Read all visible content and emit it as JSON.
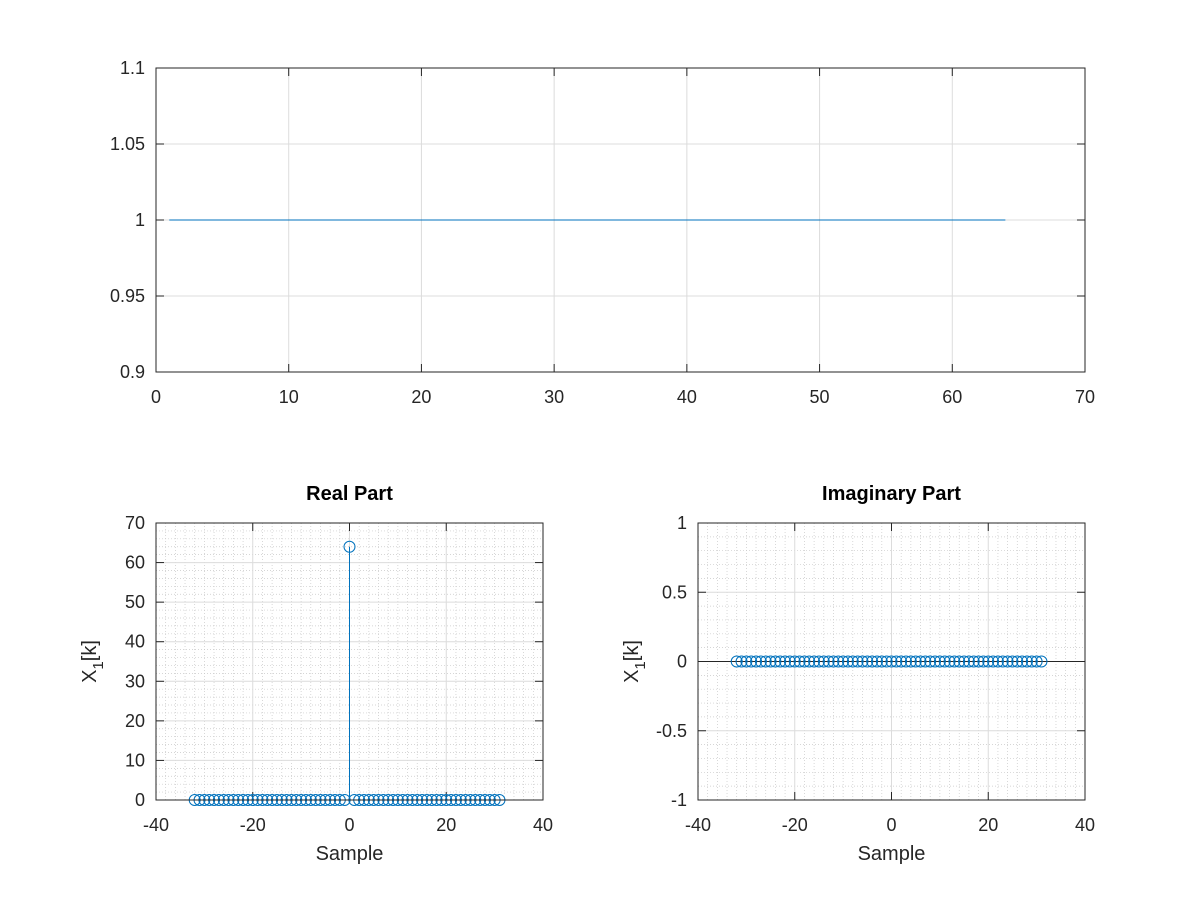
{
  "chart_data": [
    {
      "type": "line",
      "title": "",
      "xlabel": "",
      "ylabel": "",
      "xlim": [
        0,
        70
      ],
      "ylim": [
        0.9,
        1.1
      ],
      "xticks": [
        0,
        10,
        20,
        30,
        40,
        50,
        60,
        70
      ],
      "yticks": [
        0.9,
        0.95,
        1,
        1.05,
        1.1
      ],
      "xtick_labels": [
        "0",
        "10",
        "20",
        "30",
        "40",
        "50",
        "60",
        "70"
      ],
      "ytick_labels": [
        "0.9",
        "0.95",
        "1",
        "1.05",
        "1.1"
      ],
      "grid": true,
      "minor_grid": false,
      "series": [
        {
          "x_start": 1,
          "x_end": 64,
          "value": 1,
          "color": "#0072bd"
        }
      ]
    },
    {
      "type": "stem",
      "title": "Real Part",
      "xlabel": "Sample",
      "ylabel": "X",
      "ylabel_sub": "1",
      "ylabel_suffix": "[k]",
      "xlim": [
        -40,
        40
      ],
      "ylim": [
        0,
        70
      ],
      "xticks": [
        -40,
        -20,
        0,
        20,
        40
      ],
      "yticks": [
        0,
        10,
        20,
        30,
        40,
        50,
        60,
        70
      ],
      "xtick_labels": [
        "-40",
        "-20",
        "0",
        "20",
        "40"
      ],
      "ytick_labels": [
        "0",
        "10",
        "20",
        "30",
        "40",
        "50",
        "60",
        "70"
      ],
      "grid": true,
      "minor_grid": true,
      "series": [
        {
          "x_start": -32,
          "x_end": 31,
          "default_value": 0,
          "nonzero": [
            [
              0,
              64
            ]
          ],
          "color": "#0072bd"
        }
      ]
    },
    {
      "type": "stem",
      "title": "Imaginary Part",
      "xlabel": "Sample",
      "ylabel": "X",
      "ylabel_sub": "1",
      "ylabel_suffix": "[k]",
      "xlim": [
        -40,
        40
      ],
      "ylim": [
        -1,
        1
      ],
      "xticks": [
        -40,
        -20,
        0,
        20,
        40
      ],
      "yticks": [
        -1,
        -0.5,
        0,
        0.5,
        1
      ],
      "xtick_labels": [
        "-40",
        "-20",
        "0",
        "20",
        "40"
      ],
      "ytick_labels": [
        "-1",
        "-0.5",
        "0",
        "0.5",
        "1"
      ],
      "grid": true,
      "minor_grid": true,
      "series": [
        {
          "x_start": -32,
          "x_end": 31,
          "default_value": 0,
          "nonzero": [],
          "color": "#0072bd"
        }
      ]
    }
  ]
}
